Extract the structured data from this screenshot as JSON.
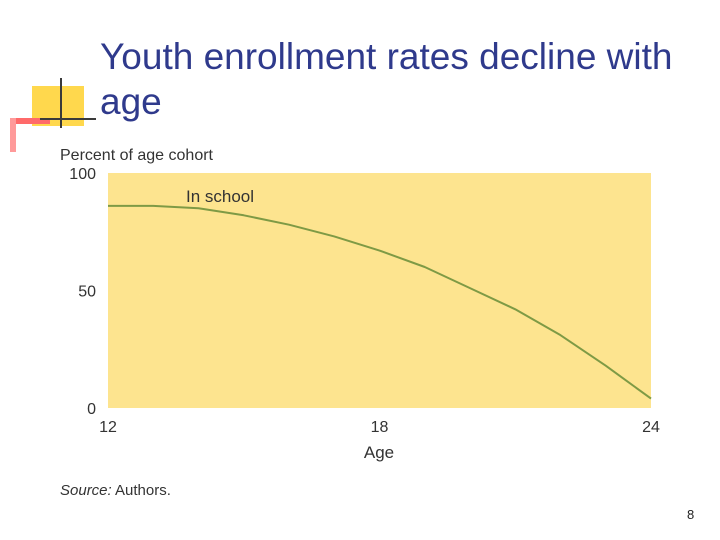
{
  "slide": {
    "title": "Youth enrollment rates decline with age",
    "source_label": "Source:",
    "source_text": " Authors.",
    "page_number": "8"
  },
  "chart_data": {
    "type": "line",
    "title": "",
    "ylabel": "Percent of age cohort",
    "xlabel": "Age",
    "xlim": [
      12,
      24
    ],
    "ylim": [
      0,
      100
    ],
    "x_ticks": [
      "12",
      "18",
      "24"
    ],
    "y_ticks": [
      "0",
      "50",
      "100"
    ],
    "grid": false,
    "background_color": "#fde48f",
    "line_color": "#7e9a45",
    "series": [
      {
        "name": "In school",
        "x": [
          12,
          13,
          14,
          15,
          16,
          17,
          18,
          19,
          20,
          21,
          22,
          23,
          24
        ],
        "y": [
          86,
          86,
          85,
          82,
          78,
          73,
          67,
          60,
          51,
          42,
          31,
          18,
          4
        ]
      }
    ]
  }
}
